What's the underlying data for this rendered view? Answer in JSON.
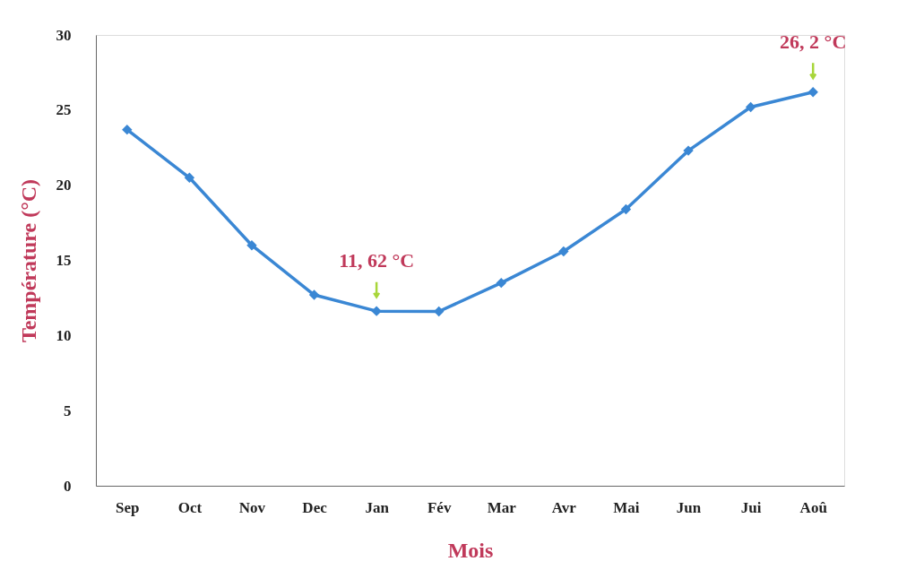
{
  "chart_data": {
    "type": "line",
    "xlabel": "Mois",
    "ylabel": "Température (°C)",
    "categories": [
      "Sep",
      "Oct",
      "Nov",
      "Dec",
      "Jan",
      "Fév",
      "Mar",
      "Avr",
      "Mai",
      "Jun",
      "Jui",
      "Aoû"
    ],
    "series": [
      {
        "color": "#3a87d4",
        "values": [
          23.7,
          20.5,
          16.0,
          12.7,
          11.62,
          11.6,
          13.5,
          15.6,
          18.4,
          22.3,
          25.2,
          26.2
        ]
      }
    ],
    "ylim": [
      0,
      30
    ],
    "yticks": [
      0,
      5,
      10,
      15,
      20,
      25,
      30
    ],
    "grid": false,
    "marker": "diamond",
    "line_style": "solid",
    "annotations": [
      {
        "text": "11, 62 °C",
        "x": "Jan",
        "y": 11.62
      },
      {
        "text": "26, 2 °C",
        "x": "Aoû",
        "y": 26.2
      }
    ]
  }
}
